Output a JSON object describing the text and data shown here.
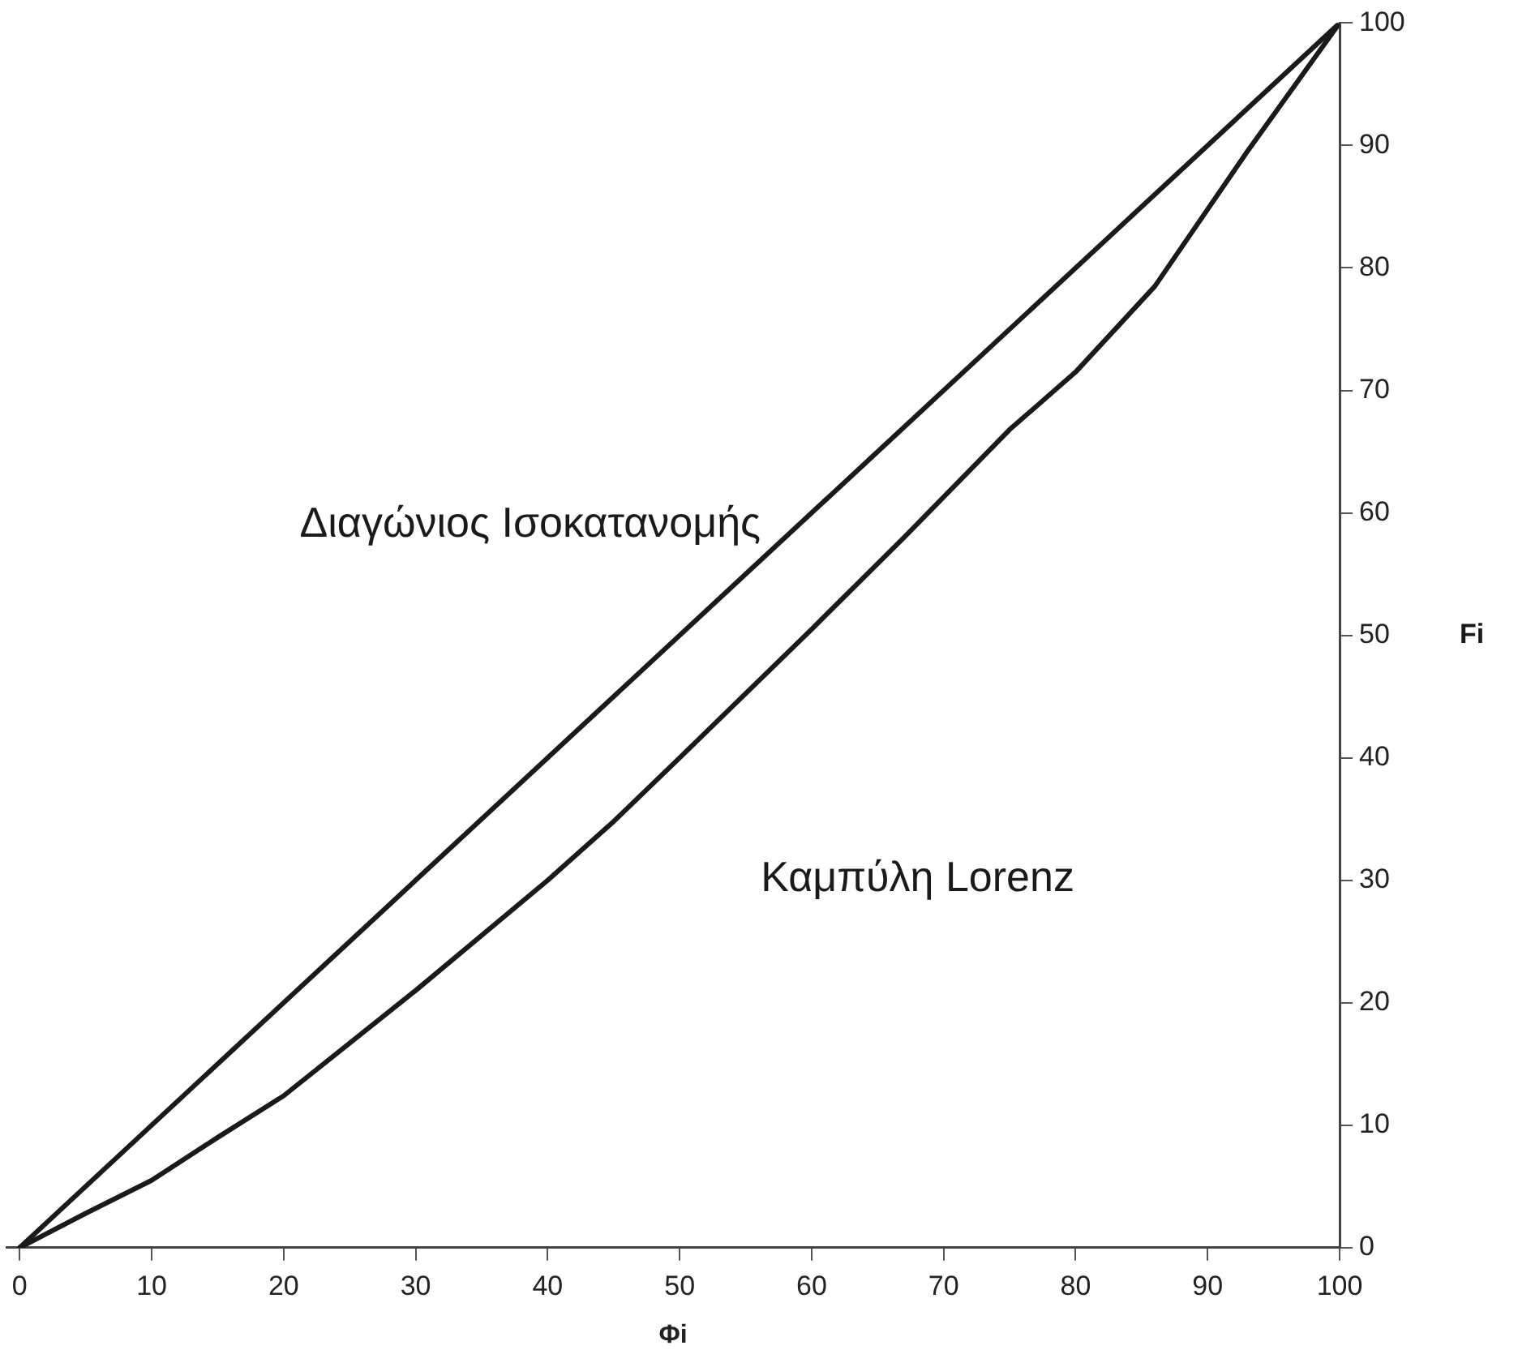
{
  "chart_data": {
    "type": "line",
    "xlabel": "Φi",
    "ylabel": "Fi",
    "xlim": [
      -1,
      100
    ],
    "ylim": [
      0,
      100
    ],
    "xticks": [
      0,
      10,
      20,
      30,
      40,
      50,
      60,
      70,
      80,
      90,
      100
    ],
    "yticks": [
      0,
      10,
      20,
      30,
      40,
      50,
      60,
      70,
      80,
      90,
      100
    ],
    "grid": false,
    "legend": false,
    "marker": "none",
    "line_style": "solid",
    "series": [
      {
        "name": "Διαγώνιος Ισοκατανομής",
        "color": "#1a1a1a",
        "x": [
          0,
          100
        ],
        "values": [
          0,
          100
        ]
      },
      {
        "name": "Καμπύλη Lorenz",
        "color": "#1a1a1a",
        "x": [
          0,
          5,
          10,
          15,
          20,
          30,
          40,
          45,
          50,
          60,
          67,
          75,
          80,
          86,
          93,
          100
        ],
        "values": [
          0,
          2.8,
          5.5,
          9,
          12.4,
          21,
          30,
          34.8,
          40,
          50.5,
          58,
          66.8,
          71.5,
          78.5,
          89.5,
          100
        ]
      }
    ]
  }
}
